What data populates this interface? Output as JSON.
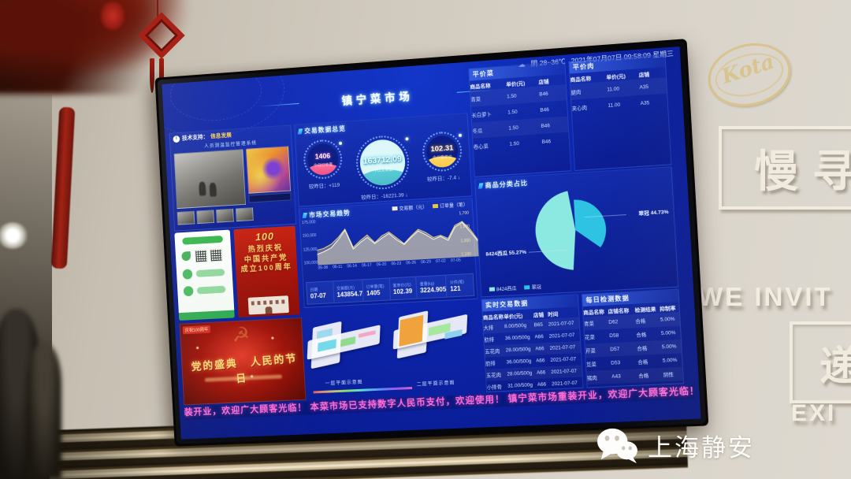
{
  "scene": {
    "watermark_text": "上海静安",
    "wall_sign": {
      "logo_script": "Kota",
      "line1": "慢寻",
      "line2": "WE INVIT",
      "line3": "递",
      "line4": "EXI"
    }
  },
  "dashboard": {
    "topbar": {
      "weather": "阴 28~36℃",
      "datetime": "2021年07月07日 09:58:09 星期三"
    },
    "title": "镇宁菜市场",
    "camera": {
      "support_prefix": "技术支持：",
      "support_name": "信息发展",
      "system": "人员测温监控管理系统"
    },
    "poster_red": {
      "emblem": "100",
      "lines": [
        "热烈庆祝",
        "中国共产党",
        "成立100周年"
      ]
    },
    "gala": {
      "tag": "庆祝100周年",
      "headline_left": "党的盛典",
      "headline_right": "人民的节日"
    },
    "overview": {
      "title": "交易数据总览",
      "gauges": [
        {
          "value": "1406",
          "label": "今日订单量",
          "delta": "较昨日：+119"
        },
        {
          "value": "163712.09",
          "label": "今日交易额",
          "delta": "较昨日：-16221.39 ↓"
        },
        {
          "value": "102.31",
          "label": "今日客单价",
          "delta": "较昨日：-7.4 ↓"
        }
      ]
    },
    "trend": {
      "title": "市场交易趋势",
      "legend": [
        {
          "label": "交易额（元）",
          "color": "#f3efdc"
        },
        {
          "label": "订单量（笔）",
          "color": "#e5c84b"
        }
      ],
      "x_labels": [
        "06-08",
        "06-11",
        "06-14",
        "06-17",
        "06-20",
        "06-23",
        "06-26",
        "06-29",
        "07-02",
        "07-05"
      ],
      "y_left": [
        "175,000",
        "150,000",
        "125,000",
        "100,000"
      ],
      "y_right": [
        "1,700",
        "1,500",
        "1,300",
        "1,100"
      ],
      "series": [
        {
          "name": "交易额（元）",
          "values": [
            118,
            124,
            132,
            150,
            172,
            126,
            140,
            152,
            136,
            148,
            158,
            142,
            130,
            146,
            160,
            150,
            138,
            144,
            134,
            164,
            174,
            152,
            128
          ]
        },
        {
          "name": "订单量（笔）",
          "values": [
            1260,
            1300,
            1380,
            1520,
            1700,
            1280,
            1420,
            1540,
            1360,
            1500,
            1580,
            1440,
            1300,
            1460,
            1600,
            1520,
            1400,
            1440,
            1360,
            1640,
            1720,
            1540,
            1290
          ]
        }
      ],
      "stats": [
        {
          "label": "日期",
          "value": "07-07"
        },
        {
          "label": "交易额(元)",
          "value": "143854.7"
        },
        {
          "label": "订单量(笔)",
          "value": "1405"
        },
        {
          "label": "客单价(元)",
          "value": "102.39"
        },
        {
          "label": "重量(kg)",
          "value": "3224.905"
        },
        {
          "label": "计件(笔)",
          "value": "121"
        }
      ]
    },
    "floorplan": {
      "label1": "一层平面示意图",
      "label2": "二层平面示意图"
    },
    "veg_table": {
      "title": "平价菜",
      "headers": [
        "商品名称",
        "单价(元)",
        "店铺"
      ],
      "rows": [
        [
          "青菜",
          "1.50",
          "B46"
        ],
        [
          "长白萝卜",
          "1.50",
          "B46"
        ],
        [
          "冬瓜",
          "1.50",
          "B46"
        ],
        [
          "卷心菜",
          "1.50",
          "B46"
        ]
      ]
    },
    "meat_table": {
      "title": "平价肉",
      "headers": [
        "商品名称",
        "单价(元)",
        "店铺"
      ],
      "rows": [
        [
          "腿肉",
          "11.00",
          "A35"
        ],
        [
          "夹心肉",
          "11.00",
          "A35"
        ]
      ]
    },
    "pie": {
      "title": "商品分类占比",
      "label_left": "8424西瓜 55.27%",
      "label_right": "翠冠 44.73%",
      "slices": [
        {
          "name": "8424西瓜",
          "pct": 55.27,
          "color": "#8ce9e2"
        },
        {
          "name": "翠冠",
          "pct": 44.73,
          "color": "#2fc3e3"
        }
      ]
    },
    "realtime": {
      "title": "实时交易数据",
      "headers": [
        "商品名称",
        "单价(元)",
        "店铺",
        "时间"
      ],
      "rows": [
        [
          "大排",
          "8.00/500g",
          "B65",
          "2021-07-07"
        ],
        [
          "肋排",
          "36.00/500g",
          "A66",
          "2021-07-07"
        ],
        [
          "五花肉",
          "28.00/500g",
          "A66",
          "2021-07-07"
        ],
        [
          "肋排",
          "36.00/500g",
          "A66",
          "2021-07-07"
        ],
        [
          "五花肉",
          "28.00/500g",
          "A66",
          "2021-07-07"
        ],
        [
          "小排骨",
          "31.00/500g",
          "A66",
          "2021-07-07"
        ]
      ]
    },
    "daily": {
      "title": "每日检测数据",
      "headers": [
        "商品名称",
        "店铺名称",
        "检测结果",
        "抑制率"
      ],
      "rows": [
        [
          "青菜",
          "D62",
          "合格",
          "5.00%"
        ],
        [
          "花菜",
          "D58",
          "合格",
          "5.00%"
        ],
        [
          "芹菜",
          "D57",
          "合格",
          "5.00%"
        ],
        [
          "苋菜",
          "D53",
          "合格",
          "5.00%"
        ],
        [
          "猪肉",
          "A43",
          "合格",
          "阴性"
        ]
      ]
    },
    "ticker": "装开业，欢迎广大顾客光临！ 本菜市场已支持数字人民币支付，欢迎使用！ 镇宁菜市场重装开业，欢迎广大顾客光临！ 本菜市场已支持数字人民币"
  }
}
